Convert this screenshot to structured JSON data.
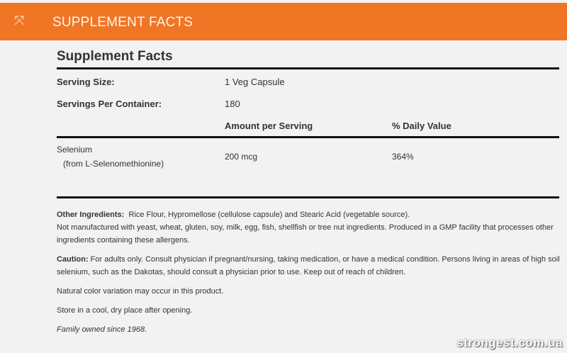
{
  "header": {
    "title": "SUPPLEMENT FACTS",
    "icon": "shrink-arrows-icon",
    "color": "#f07524"
  },
  "facts": {
    "title": "Supplement Facts",
    "serving_size_label": "Serving Size:",
    "serving_size_value": "1 Veg Capsule",
    "servings_label": "Servings Per Container:",
    "servings_value": "180",
    "col_amount": "Amount per Serving",
    "col_dv": "% Daily Value",
    "rows": [
      {
        "name": "Selenium",
        "source": "(from L-Selenomethionine)",
        "amount": "200 mcg",
        "dv": "364%"
      }
    ]
  },
  "notes": {
    "other_label": "Other Ingredients:",
    "other_text": "Rice Flour, Hypromellose (cellulose capsule) and Stearic Acid (vegetable source).",
    "allergen": "Not manufactured with yeast, wheat, gluten, soy, milk, egg, fish, shellfish or tree nut ingredients. Produced in a GMP facility that processes other ingredients containing these allergens.",
    "caution_label": "Caution:",
    "caution_text": "For adults only. Consult physician if pregnant/nursing, taking medication, or have a medical condition. Persons living in areas of high soil selenium, such as the Dakotas, should consult a physician prior to use. Keep out of reach of children.",
    "color_variation": "Natural color variation may occur in this product.",
    "storage": "Store in a cool, dry place after opening.",
    "family": "Family owned since 1968."
  },
  "watermark": "strongest.com.ua"
}
